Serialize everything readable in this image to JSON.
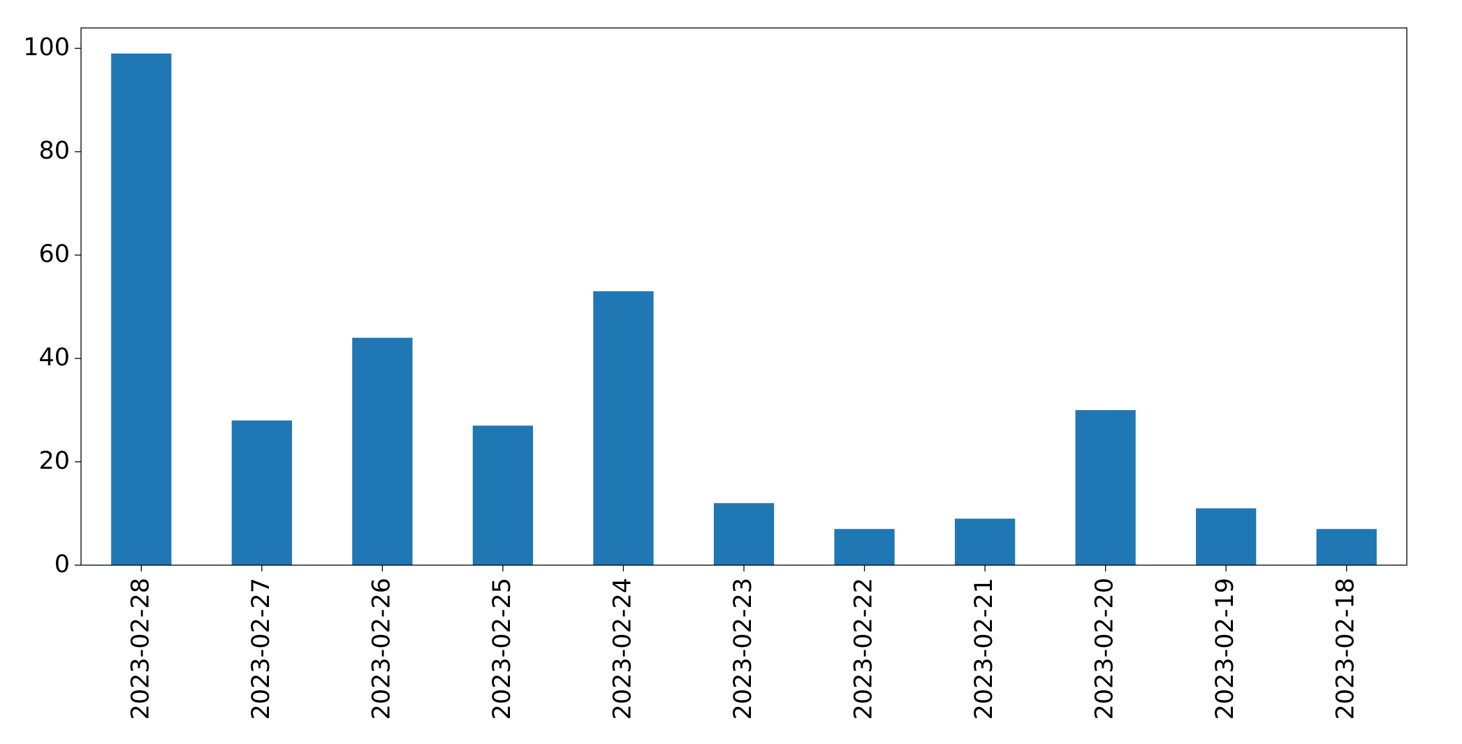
{
  "chart_data": {
    "type": "bar",
    "categories": [
      "2023-02-28",
      "2023-02-27",
      "2023-02-26",
      "2023-02-25",
      "2023-02-24",
      "2023-02-23",
      "2023-02-22",
      "2023-02-21",
      "2023-02-20",
      "2023-02-19",
      "2023-02-18"
    ],
    "values": [
      99,
      28,
      44,
      27,
      53,
      12,
      7,
      9,
      30,
      11,
      7
    ],
    "color": "#1f77b4",
    "ylim": [
      0,
      103.95
    ],
    "yticks": [
      0,
      20,
      40,
      60,
      80,
      100
    ],
    "grid": false
  }
}
